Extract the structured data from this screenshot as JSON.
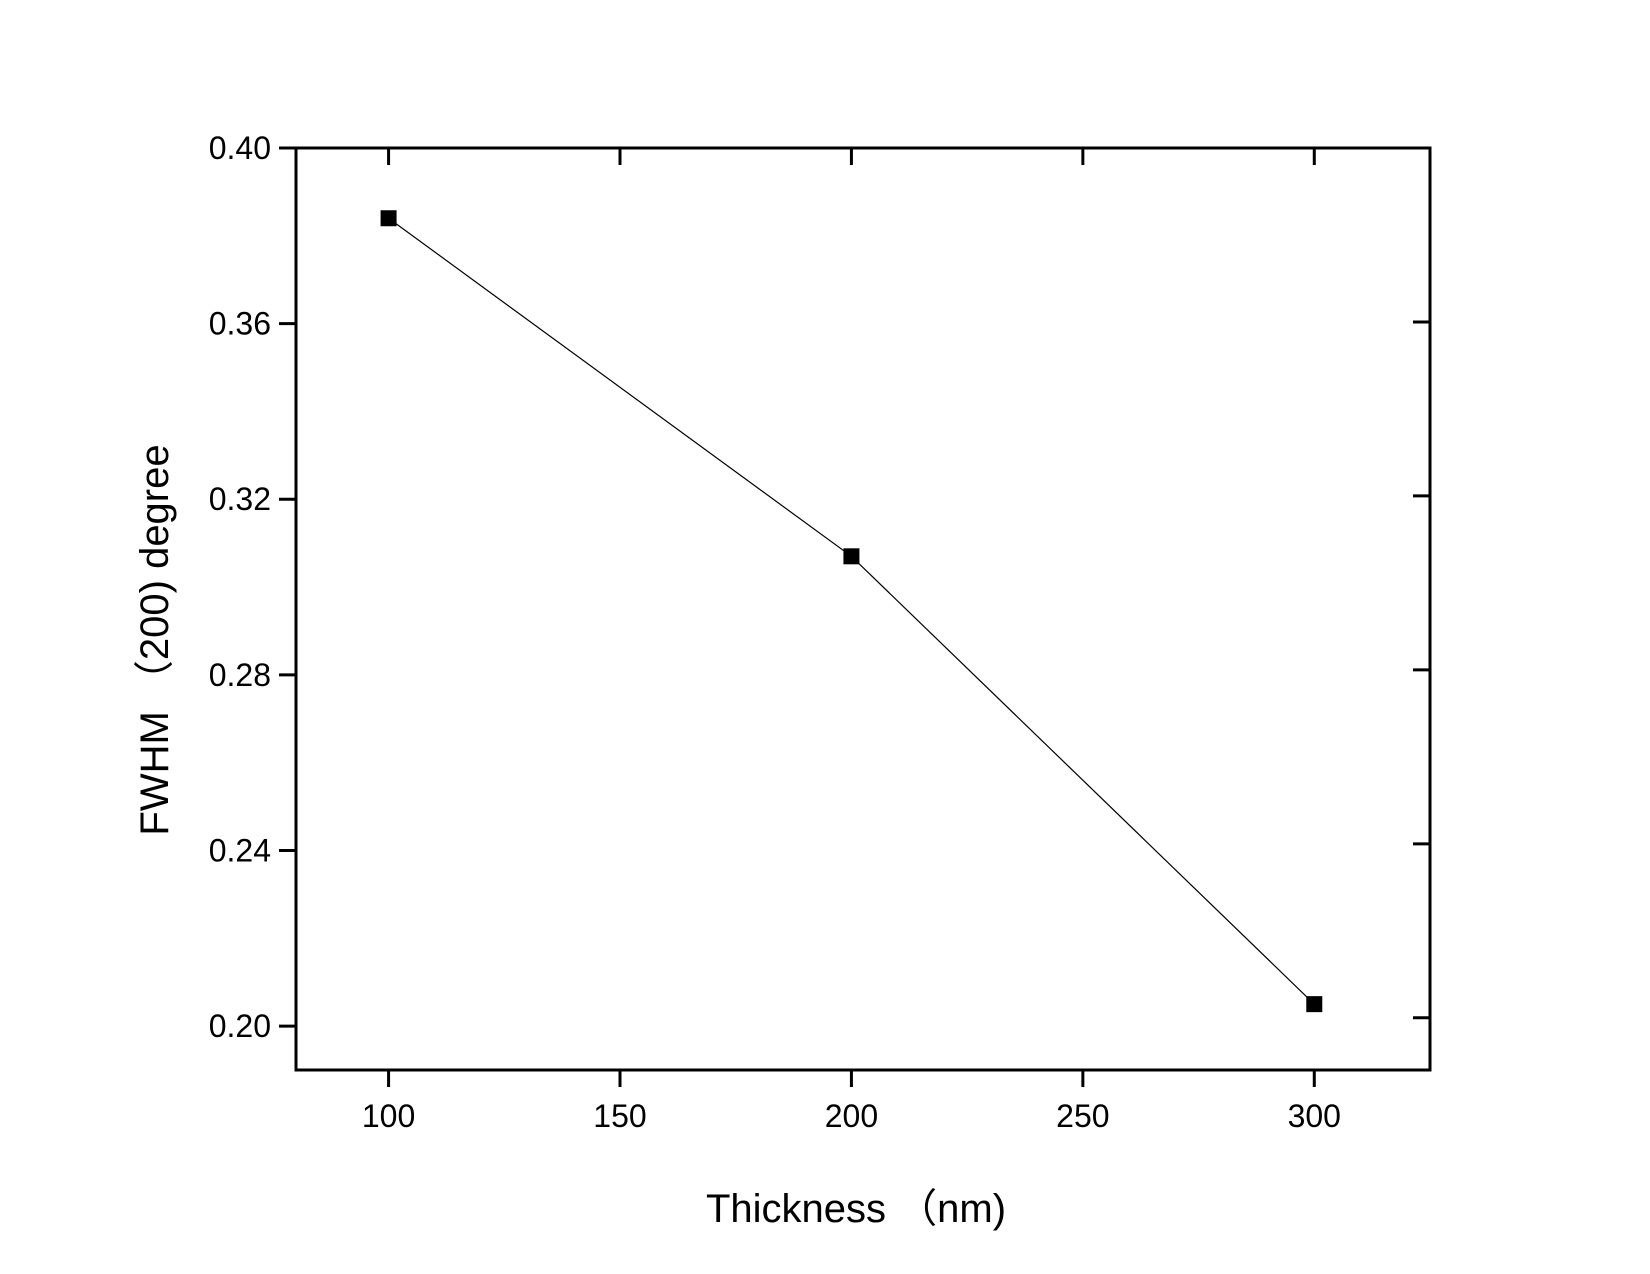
{
  "chart_data": {
    "type": "line",
    "title": "",
    "xlabel": "Thickness （nm)",
    "ylabel": "FWHM （200)    degree",
    "xlim": [
      80,
      325
    ],
    "ylim": [
      0.19,
      0.4
    ],
    "xticks": [
      100,
      150,
      200,
      250,
      300
    ],
    "xtick_labels": [
      "100",
      "150",
      "200",
      "250",
      "300"
    ],
    "yticks": [
      0.2,
      0.24,
      0.28,
      0.32,
      0.36,
      0.4
    ],
    "ytick_labels": [
      "0.20",
      "0.24",
      "0.28",
      "0.32",
      "0.36",
      "0.40"
    ],
    "grid": false,
    "legend": "none",
    "series": [
      {
        "x": [
          100,
          200,
          300
        ],
        "y": [
          0.384,
          0.307,
          0.205
        ],
        "marker": "square",
        "color": "#000000"
      }
    ]
  }
}
